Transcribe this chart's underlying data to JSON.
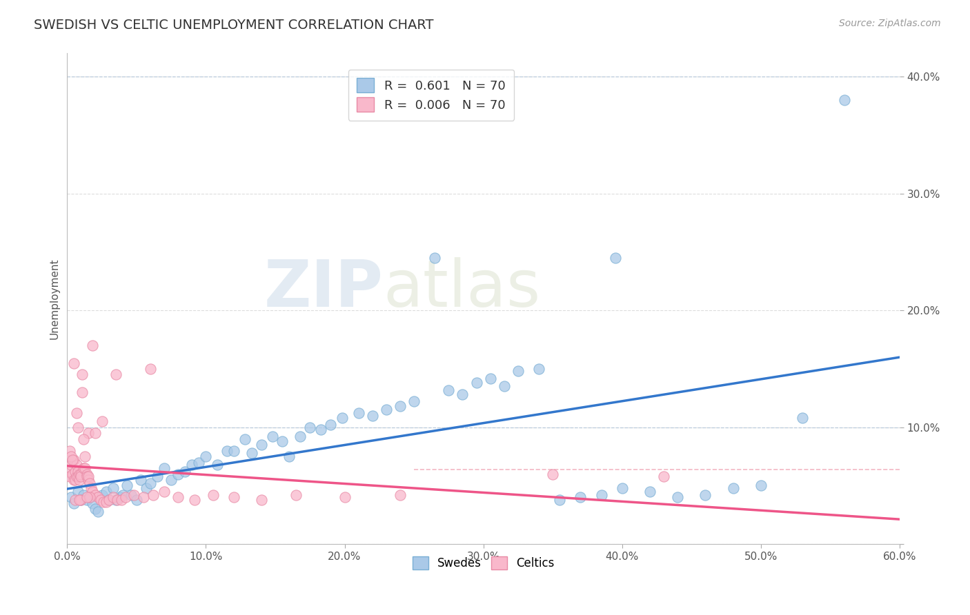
{
  "title": "SWEDISH VS CELTIC UNEMPLOYMENT CORRELATION CHART",
  "source_text": "Source: ZipAtlas.com",
  "ylabel": "Unemployment",
  "x_min": 0.0,
  "x_max": 0.6,
  "y_min": 0.0,
  "y_max": 0.42,
  "x_ticks": [
    0.0,
    0.1,
    0.2,
    0.3,
    0.4,
    0.5,
    0.6
  ],
  "y_ticks": [
    0.0,
    0.1,
    0.2,
    0.3,
    0.4
  ],
  "swedish_color": "#aac9e8",
  "celtic_color": "#f9b8cb",
  "swedish_edge": "#7aafd4",
  "celtic_edge": "#e88aa5",
  "trend_blue": "#3377cc",
  "trend_pink": "#ee5588",
  "R_swedish": "0.601",
  "R_celtic": "0.006",
  "N": 70,
  "watermark_zip": "ZIP",
  "watermark_atlas": "atlas",
  "swedish_x": [
    0.003,
    0.005,
    0.008,
    0.01,
    0.012,
    0.014,
    0.016,
    0.018,
    0.02,
    0.022,
    0.025,
    0.028,
    0.03,
    0.033,
    0.035,
    0.038,
    0.04,
    0.043,
    0.046,
    0.05,
    0.053,
    0.057,
    0.06,
    0.065,
    0.07,
    0.075,
    0.08,
    0.085,
    0.09,
    0.095,
    0.1,
    0.108,
    0.115,
    0.12,
    0.128,
    0.133,
    0.14,
    0.148,
    0.155,
    0.16,
    0.168,
    0.175,
    0.183,
    0.19,
    0.198,
    0.21,
    0.22,
    0.23,
    0.24,
    0.25,
    0.265,
    0.275,
    0.285,
    0.295,
    0.305,
    0.315,
    0.325,
    0.34,
    0.355,
    0.37,
    0.385,
    0.4,
    0.42,
    0.44,
    0.46,
    0.48,
    0.5,
    0.395,
    0.53,
    0.56
  ],
  "swedish_y": [
    0.04,
    0.035,
    0.045,
    0.038,
    0.042,
    0.038,
    0.04,
    0.035,
    0.03,
    0.028,
    0.042,
    0.045,
    0.038,
    0.048,
    0.038,
    0.04,
    0.042,
    0.05,
    0.042,
    0.038,
    0.055,
    0.048,
    0.052,
    0.058,
    0.065,
    0.055,
    0.06,
    0.062,
    0.068,
    0.07,
    0.075,
    0.068,
    0.08,
    0.08,
    0.09,
    0.078,
    0.085,
    0.092,
    0.088,
    0.075,
    0.092,
    0.1,
    0.098,
    0.102,
    0.108,
    0.112,
    0.11,
    0.115,
    0.118,
    0.122,
    0.245,
    0.132,
    0.128,
    0.138,
    0.142,
    0.135,
    0.148,
    0.15,
    0.038,
    0.04,
    0.042,
    0.048,
    0.045,
    0.04,
    0.042,
    0.048,
    0.05,
    0.245,
    0.108,
    0.38
  ],
  "celtic_x": [
    0.001,
    0.002,
    0.003,
    0.004,
    0.005,
    0.005,
    0.006,
    0.006,
    0.007,
    0.007,
    0.008,
    0.008,
    0.009,
    0.009,
    0.01,
    0.01,
    0.011,
    0.011,
    0.012,
    0.013,
    0.013,
    0.014,
    0.014,
    0.015,
    0.015,
    0.016,
    0.017,
    0.018,
    0.02,
    0.022,
    0.024,
    0.026,
    0.028,
    0.03,
    0.033,
    0.036,
    0.039,
    0.042,
    0.048,
    0.055,
    0.062,
    0.07,
    0.08,
    0.092,
    0.105,
    0.12,
    0.14,
    0.165,
    0.2,
    0.24,
    0.015,
    0.02,
    0.025,
    0.005,
    0.018,
    0.035,
    0.06,
    0.002,
    0.008,
    0.012,
    0.003,
    0.007,
    0.004,
    0.35,
    0.43,
    0.006,
    0.01,
    0.016,
    0.009,
    0.014
  ],
  "celtic_y": [
    0.062,
    0.058,
    0.068,
    0.06,
    0.072,
    0.055,
    0.062,
    0.055,
    0.068,
    0.058,
    0.062,
    0.058,
    0.06,
    0.055,
    0.06,
    0.058,
    0.145,
    0.13,
    0.065,
    0.075,
    0.065,
    0.06,
    0.058,
    0.055,
    0.058,
    0.052,
    0.048,
    0.045,
    0.042,
    0.04,
    0.038,
    0.036,
    0.036,
    0.038,
    0.04,
    0.038,
    0.038,
    0.04,
    0.042,
    0.04,
    0.042,
    0.045,
    0.04,
    0.038,
    0.042,
    0.04,
    0.038,
    0.042,
    0.04,
    0.042,
    0.095,
    0.095,
    0.105,
    0.155,
    0.17,
    0.145,
    0.15,
    0.08,
    0.1,
    0.09,
    0.075,
    0.112,
    0.072,
    0.06,
    0.058,
    0.038,
    0.038,
    0.04,
    0.038,
    0.04
  ]
}
